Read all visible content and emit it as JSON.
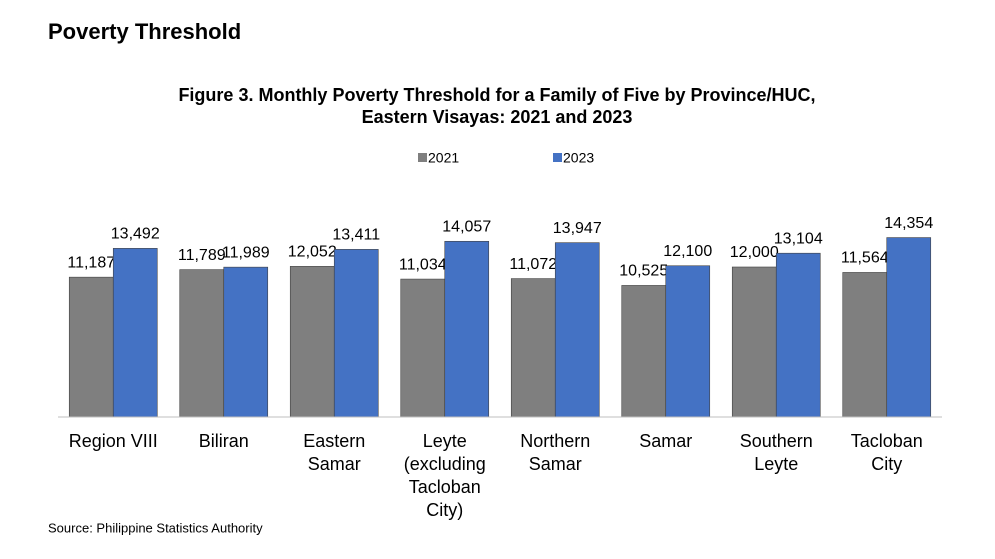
{
  "heading": "Poverty Threshold",
  "source": "Source: Philippine Statistics Authority",
  "chart_data": {
    "type": "bar",
    "title": [
      "Figure 3. Monthly Poverty Threshold for a Family of Five by Province/HUC,",
      "Eastern Visayas: 2021 and 2023"
    ],
    "categories": [
      "Region VIII",
      "Biliran",
      "Eastern Samar",
      "Leyte (excluding Tacloban City)",
      "Northern Samar",
      "Samar",
      "Southern Leyte",
      "Tacloban City"
    ],
    "series": [
      {
        "name": "2021",
        "color": "#7f7f7f",
        "values": [
          11187,
          11789,
          12052,
          11034,
          11072,
          10525,
          12000,
          11564
        ],
        "value_labels": [
          "11,187",
          "11,789",
          "12,052",
          "11,034",
          "11,072",
          "10,525",
          "12,000",
          "11,564"
        ]
      },
      {
        "name": "2023",
        "color": "#4472c4",
        "values": [
          13492,
          11989,
          13411,
          14057,
          13947,
          12100,
          13104,
          14354
        ],
        "value_labels": [
          "13,492",
          "11,989",
          "13,411",
          "14,057",
          "13,947",
          "12,100",
          "13,104",
          "14,354"
        ]
      }
    ],
    "ylim": [
      0,
      16000
    ]
  }
}
